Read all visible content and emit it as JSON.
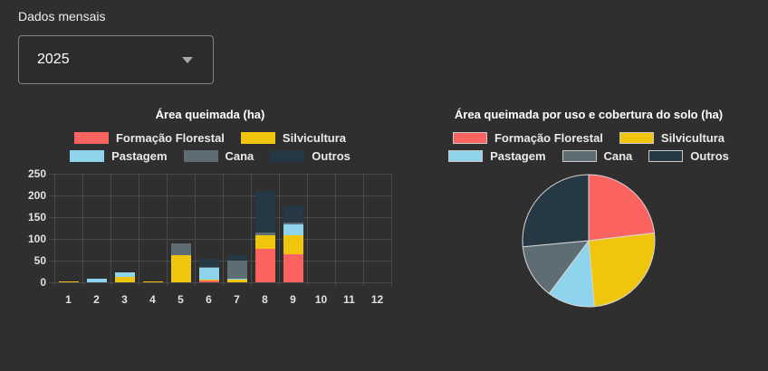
{
  "header": {
    "label": "Dados mensais"
  },
  "year_select": {
    "value": "2025"
  },
  "colors": {
    "formacao_florestal": "#fa6360",
    "silvicultura": "#efc50d",
    "pastagem": "#8ed4ec",
    "cana": "#5e6c73",
    "outros": "#263843",
    "background": "#2f2f30",
    "gridline": "#49494b",
    "pie_stroke": "#d6d6d6"
  },
  "chart_data": [
    {
      "type": "bar",
      "stacked": true,
      "title": "Área queimada (ha)",
      "xlabel": "",
      "ylabel": "",
      "categories": [
        "1",
        "2",
        "3",
        "4",
        "5",
        "6",
        "7",
        "8",
        "9",
        "10",
        "11",
        "12"
      ],
      "series": [
        {
          "name": "Formação Florestal",
          "color": "#fa6360",
          "values": [
            0,
            0,
            0,
            0,
            0,
            4,
            0,
            77,
            65,
            0,
            0,
            0
          ]
        },
        {
          "name": "Silvicultura",
          "color": "#efc50d",
          "values": [
            2,
            0,
            12,
            2,
            62,
            2,
            7,
            31,
            43,
            0,
            0,
            0
          ]
        },
        {
          "name": "Pastagem",
          "color": "#8ed4ec",
          "values": [
            0,
            8,
            10,
            0,
            0,
            27,
            2,
            0,
            26,
            0,
            0,
            0
          ]
        },
        {
          "name": "Cana",
          "color": "#5e6c73",
          "values": [
            0,
            0,
            0,
            1,
            28,
            3,
            41,
            7,
            4,
            0,
            0,
            0
          ]
        },
        {
          "name": "Outros",
          "color": "#263843",
          "values": [
            0,
            0,
            0,
            0,
            0,
            19,
            13,
            95,
            40,
            0,
            0,
            0
          ]
        }
      ],
      "ylim": [
        0,
        250
      ],
      "yticks": [
        0,
        50,
        100,
        150,
        200,
        250
      ],
      "grid": true,
      "legend_position": "top",
      "legend_rows": [
        [
          "Formação Florestal",
          "Silvicultura"
        ],
        [
          "Pastagem",
          "Cana",
          "Outros"
        ]
      ]
    },
    {
      "type": "pie",
      "title": "Área queimada por uso e cobertura do solo (ha)",
      "labels": [
        "Formação Florestal",
        "Silvicultura",
        "Pastagem",
        "Cana",
        "Outros"
      ],
      "values": [
        146,
        161,
        73,
        84,
        167
      ],
      "colors": [
        "#fa6360",
        "#efc50d",
        "#8ed4ec",
        "#5e6c73",
        "#263843"
      ],
      "start_angle_deg": 0,
      "direction": "clockwise",
      "legend_position": "top",
      "legend_rows": [
        [
          "Formação Florestal",
          "Silvicultura"
        ],
        [
          "Pastagem",
          "Cana",
          "Outros"
        ]
      ]
    }
  ]
}
